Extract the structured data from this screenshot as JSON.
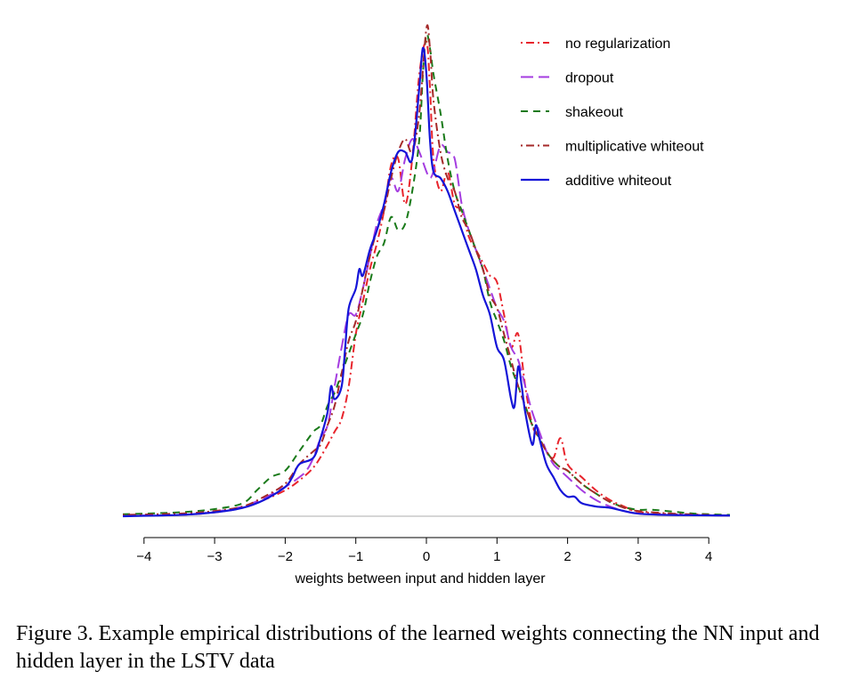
{
  "caption": "Figure 3.  Example empirical distributions of the learned weights connecting the NN input and hidden layer in the LSTV data",
  "chart_data": {
    "type": "line",
    "title": "",
    "xlabel": "weights between input and hidden layer",
    "ylabel": "",
    "xlim": [
      -4.3,
      4.3
    ],
    "ylim": [
      0,
      0.75
    ],
    "xticks": [
      -4,
      -3,
      -2,
      -1,
      0,
      1,
      2,
      3,
      4
    ],
    "xtick_labels": [
      "−4",
      "−3",
      "−2",
      "−1",
      "0",
      "1",
      "2",
      "3",
      "4"
    ],
    "y_axis_shown": false,
    "grid": false,
    "baseline": 0,
    "legend_position": "top-right",
    "series": [
      {
        "name": "no regularization",
        "color": "#e8242c",
        "dash": "dotdash",
        "x": [
          -4.3,
          -3.5,
          -3.0,
          -2.6,
          -2.3,
          -2.0,
          -1.8,
          -1.6,
          -1.45,
          -1.3,
          -1.2,
          -1.1,
          -1.0,
          -0.9,
          -0.8,
          -0.7,
          -0.6,
          -0.5,
          -0.4,
          -0.3,
          -0.2,
          -0.1,
          0.0,
          0.05,
          0.1,
          0.2,
          0.3,
          0.4,
          0.5,
          0.6,
          0.7,
          0.8,
          0.9,
          1.0,
          1.1,
          1.2,
          1.3,
          1.4,
          1.5,
          1.6,
          1.7,
          1.8,
          1.9,
          2.0,
          2.2,
          2.4,
          2.6,
          2.8,
          3.0,
          3.5,
          4.3
        ],
        "y": [
          0.001,
          0.002,
          0.006,
          0.013,
          0.025,
          0.04,
          0.055,
          0.075,
          0.1,
          0.13,
          0.15,
          0.2,
          0.28,
          0.33,
          0.38,
          0.42,
          0.47,
          0.54,
          0.55,
          0.48,
          0.55,
          0.68,
          0.73,
          0.66,
          0.55,
          0.5,
          0.53,
          0.48,
          0.47,
          0.43,
          0.41,
          0.39,
          0.37,
          0.36,
          0.31,
          0.26,
          0.28,
          0.2,
          0.14,
          0.12,
          0.1,
          0.09,
          0.12,
          0.08,
          0.06,
          0.04,
          0.025,
          0.015,
          0.007,
          0.003,
          0.001
        ]
      },
      {
        "name": "dropout",
        "color": "#a43ce0",
        "dash": "longdash",
        "x": [
          -4.3,
          -3.5,
          -3.0,
          -2.6,
          -2.3,
          -2.0,
          -1.8,
          -1.7,
          -1.6,
          -1.5,
          -1.4,
          -1.3,
          -1.2,
          -1.1,
          -1.0,
          -0.9,
          -0.8,
          -0.7,
          -0.6,
          -0.5,
          -0.4,
          -0.3,
          -0.2,
          -0.1,
          0.0,
          0.05,
          0.1,
          0.2,
          0.3,
          0.4,
          0.5,
          0.6,
          0.7,
          0.8,
          0.9,
          1.0,
          1.1,
          1.2,
          1.3,
          1.4,
          1.5,
          1.6,
          1.7,
          1.8,
          1.9,
          2.0,
          2.2,
          2.4,
          2.6,
          2.8,
          3.0,
          3.5,
          4.3
        ],
        "y": [
          0.001,
          0.002,
          0.007,
          0.015,
          0.028,
          0.045,
          0.06,
          0.07,
          0.09,
          0.12,
          0.14,
          0.2,
          0.26,
          0.31,
          0.31,
          0.35,
          0.4,
          0.45,
          0.48,
          0.52,
          0.5,
          0.55,
          0.58,
          0.56,
          0.53,
          0.52,
          0.53,
          0.57,
          0.56,
          0.55,
          0.48,
          0.44,
          0.41,
          0.38,
          0.35,
          0.32,
          0.3,
          0.26,
          0.24,
          0.2,
          0.16,
          0.13,
          0.1,
          0.08,
          0.07,
          0.06,
          0.04,
          0.025,
          0.015,
          0.008,
          0.004,
          0.002,
          0.001
        ]
      },
      {
        "name": "shakeout",
        "color": "#1a7a1a",
        "dash": "dash",
        "x": [
          -4.3,
          -3.5,
          -3.0,
          -2.6,
          -2.4,
          -2.2,
          -2.0,
          -1.8,
          -1.6,
          -1.5,
          -1.4,
          -1.3,
          -1.2,
          -1.1,
          -1.0,
          -0.9,
          -0.8,
          -0.7,
          -0.6,
          -0.5,
          -0.4,
          -0.3,
          -0.2,
          -0.1,
          -0.05,
          0.0,
          0.05,
          0.1,
          0.2,
          0.3,
          0.4,
          0.5,
          0.6,
          0.7,
          0.8,
          0.9,
          1.0,
          1.1,
          1.2,
          1.3,
          1.4,
          1.5,
          1.6,
          1.7,
          1.8,
          1.9,
          2.0,
          2.2,
          2.4,
          2.6,
          2.8,
          3.0,
          3.2,
          3.5,
          3.8,
          4.3
        ],
        "y": [
          0.003,
          0.006,
          0.011,
          0.02,
          0.04,
          0.06,
          0.07,
          0.1,
          0.13,
          0.14,
          0.17,
          0.19,
          0.22,
          0.25,
          0.28,
          0.31,
          0.36,
          0.4,
          0.42,
          0.46,
          0.44,
          0.45,
          0.5,
          0.58,
          0.68,
          0.74,
          0.72,
          0.68,
          0.62,
          0.55,
          0.5,
          0.47,
          0.44,
          0.41,
          0.38,
          0.33,
          0.3,
          0.27,
          0.23,
          0.2,
          0.17,
          0.14,
          0.12,
          0.1,
          0.085,
          0.075,
          0.07,
          0.05,
          0.035,
          0.022,
          0.014,
          0.01,
          0.01,
          0.007,
          0.004,
          0.002
        ]
      },
      {
        "name": "multiplicative whiteout",
        "color": "#a52a2a",
        "dash": "dotdash",
        "x": [
          -4.3,
          -3.5,
          -3.0,
          -2.6,
          -2.3,
          -2.0,
          -1.8,
          -1.6,
          -1.5,
          -1.4,
          -1.3,
          -1.2,
          -1.1,
          -1.0,
          -0.9,
          -0.8,
          -0.7,
          -0.6,
          -0.5,
          -0.4,
          -0.3,
          -0.2,
          -0.1,
          0.0,
          0.05,
          0.1,
          0.2,
          0.3,
          0.4,
          0.5,
          0.6,
          0.7,
          0.8,
          0.9,
          1.0,
          1.1,
          1.2,
          1.3,
          1.4,
          1.5,
          1.6,
          1.7,
          1.8,
          1.9,
          2.0,
          2.2,
          2.4,
          2.6,
          2.8,
          3.0,
          3.5,
          4.3
        ],
        "y": [
          0.002,
          0.004,
          0.008,
          0.015,
          0.03,
          0.05,
          0.08,
          0.1,
          0.11,
          0.14,
          0.17,
          0.22,
          0.27,
          0.3,
          0.35,
          0.4,
          0.44,
          0.47,
          0.52,
          0.56,
          0.58,
          0.56,
          0.62,
          0.75,
          0.72,
          0.64,
          0.56,
          0.52,
          0.5,
          0.46,
          0.44,
          0.41,
          0.38,
          0.34,
          0.32,
          0.28,
          0.24,
          0.2,
          0.17,
          0.14,
          0.12,
          0.1,
          0.085,
          0.075,
          0.07,
          0.05,
          0.035,
          0.022,
          0.013,
          0.008,
          0.004,
          0.001
        ]
      },
      {
        "name": "additive whiteout",
        "color": "#1414d8",
        "dash": "solid",
        "x": [
          -4.3,
          -3.5,
          -3.0,
          -2.6,
          -2.3,
          -2.0,
          -1.9,
          -1.8,
          -1.6,
          -1.5,
          -1.4,
          -1.35,
          -1.3,
          -1.2,
          -1.15,
          -1.1,
          -1.0,
          -0.95,
          -0.9,
          -0.8,
          -0.7,
          -0.6,
          -0.5,
          -0.4,
          -0.3,
          -0.2,
          -0.1,
          -0.05,
          0.0,
          0.05,
          0.1,
          0.2,
          0.3,
          0.4,
          0.5,
          0.6,
          0.7,
          0.8,
          0.9,
          1.0,
          1.1,
          1.2,
          1.25,
          1.3,
          1.35,
          1.4,
          1.5,
          1.55,
          1.6,
          1.7,
          1.8,
          1.9,
          2.0,
          2.1,
          2.2,
          2.4,
          2.6,
          2.8,
          3.0,
          3.4,
          4.3
        ],
        "y": [
          0.0,
          0.002,
          0.006,
          0.013,
          0.025,
          0.045,
          0.06,
          0.08,
          0.09,
          0.12,
          0.16,
          0.2,
          0.18,
          0.2,
          0.26,
          0.32,
          0.35,
          0.38,
          0.37,
          0.41,
          0.44,
          0.48,
          0.53,
          0.56,
          0.56,
          0.55,
          0.66,
          0.72,
          0.68,
          0.58,
          0.53,
          0.52,
          0.5,
          0.47,
          0.44,
          0.41,
          0.38,
          0.34,
          0.31,
          0.26,
          0.24,
          0.18,
          0.17,
          0.23,
          0.2,
          0.16,
          0.11,
          0.14,
          0.12,
          0.08,
          0.06,
          0.04,
          0.03,
          0.03,
          0.02,
          0.015,
          0.013,
          0.008,
          0.004,
          0.002,
          0.001
        ]
      }
    ]
  }
}
